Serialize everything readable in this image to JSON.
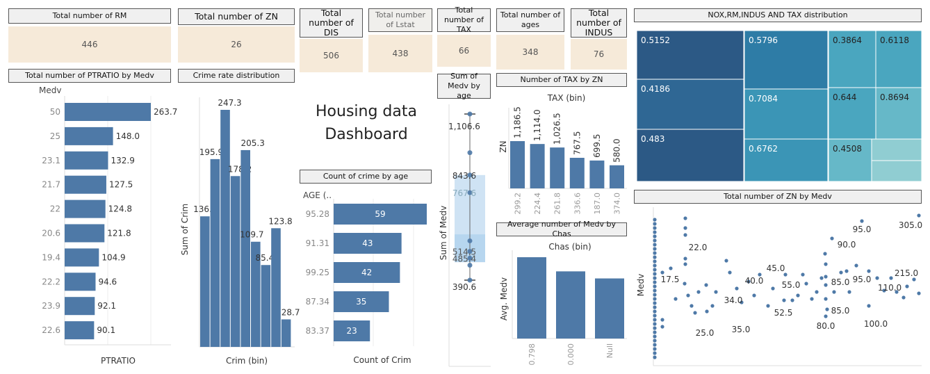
{
  "kpis": {
    "rm": {
      "label": "Total number of RM",
      "value": "446"
    },
    "zn": {
      "label": "Total number of ZN",
      "value": "26"
    },
    "dis": {
      "label": "Total number of DIS",
      "value": "506"
    },
    "lstat": {
      "label": "Total number of Lstat",
      "value": "438"
    },
    "tax": {
      "label": "Total number of TAX",
      "value": "66"
    },
    "ages": {
      "label": "Total number of ages",
      "value": "348"
    },
    "indus": {
      "label": "Total number of INDUS",
      "value": "76"
    }
  },
  "dashboard_title": {
    "line1": "Housing data",
    "line2": "Dashboard"
  },
  "chart_data": [
    {
      "id": "ptratio",
      "type": "bar",
      "title": "Total number of PTRATIO by Medv",
      "ylabel": "Medv",
      "xlabel": "PTRATIO",
      "categories": [
        "50",
        "25",
        "23.1",
        "21.7",
        "22",
        "20.6",
        "19.4",
        "22.2",
        "23.9",
        "22.6"
      ],
      "values": [
        263.7,
        148.0,
        132.9,
        127.5,
        124.8,
        121.8,
        104.9,
        94.6,
        92.1,
        90.1
      ],
      "labels": [
        "263.7",
        "148.0",
        "132.9",
        "127.5",
        "124.8",
        "121.8",
        "104.9",
        "94.6",
        "92.1",
        "90.1"
      ],
      "xlim": [
        0,
        300
      ],
      "color": "#4e79a7"
    },
    {
      "id": "crime",
      "type": "bar",
      "title": "Crime rate distribution",
      "ylabel": "Sum of Crim",
      "xlabel": "Crim (bin)",
      "values": [
        136.2,
        195.9,
        247.3,
        178.2,
        205.3,
        109.7,
        85.4,
        123.8,
        28.7
      ],
      "labels": [
        "136.2",
        "195.9",
        "247.3",
        "178.2",
        "205.3",
        "109.7",
        "85.4",
        "123.8",
        "28.7"
      ],
      "ylim": [
        0,
        260
      ],
      "color": "#4e79a7"
    },
    {
      "id": "crime_age",
      "type": "bar",
      "title": "Count of crime by age",
      "ylabel": "AGE (..",
      "xlabel": "Count of Crim",
      "categories": [
        "95.28",
        "91.31",
        "99.25",
        "87.34",
        "83.37"
      ],
      "values": [
        59,
        43,
        42,
        35,
        23
      ],
      "labels": [
        "59",
        "43",
        "42",
        "35",
        "23"
      ],
      "xlim": [
        0,
        70
      ],
      "color": "#4e79a7"
    },
    {
      "id": "medv_age",
      "type": "scatter",
      "title": "Sum of Medv by age",
      "ylabel": "Sum of Medv",
      "labels": [
        "1,106.6",
        "843.6",
        "767.6",
        "514.5",
        "485.4",
        "390.6"
      ],
      "values": [
        1106.6,
        843.6,
        767.6,
        514.5,
        485.4,
        390.6
      ],
      "ylim": [
        340,
        1200
      ],
      "color": "#4e79a7"
    },
    {
      "id": "tax_zn",
      "type": "bar",
      "title": "Number of TAX by ZN",
      "xlabel": "TAX (bin)",
      "ylabel": "ZN",
      "categories": [
        "299.2",
        "224.4",
        "261.8",
        "336.6",
        "187.0",
        "374.0"
      ],
      "values": [
        1186.5,
        1114.0,
        1026.5,
        767.5,
        699.5,
        580.0
      ],
      "labels": [
        "1,186.5",
        "1,114.0",
        "1,026.5",
        "767.5",
        "699.5",
        "580.0"
      ],
      "ylim": [
        0,
        1300
      ],
      "color": "#4e79a7"
    },
    {
      "id": "medv_chas",
      "type": "bar",
      "title": "Average number of Medv by Chas",
      "xlabel": "Chas (bin)",
      "ylabel": "Avg. Medv",
      "categories": [
        "0.798",
        "0.000",
        "Null"
      ],
      "values": [
        34.5,
        28.5,
        25.5
      ],
      "ylim": [
        0,
        36
      ],
      "color": "#4e79a7"
    },
    {
      "id": "treemap",
      "type": "treemap",
      "title": "NOX,RM,INDUS AND TAX distribution",
      "labels": [
        "0.5152",
        "0.4186",
        "0.483",
        "0.5796",
        "0.7084",
        "0.6762",
        "0.3864",
        "0.6118",
        "0.644",
        "0.8694",
        "0.4508"
      ],
      "palette": [
        "#2c5985",
        "#2f6794",
        "#2e7ca6",
        "#3b95b6",
        "#4aa6bf",
        "#66b8c8",
        "#90cdd2"
      ]
    },
    {
      "id": "zn_medv",
      "type": "scatter",
      "title": "Total number of ZN by Medv",
      "ylabel": "Medv",
      "labels": [
        "305.0",
        "95.0",
        "90.0",
        "22.0",
        "17.5",
        "45.0",
        "40.0",
        "55.0",
        "34.0",
        "85.0",
        "95.0",
        "215.0",
        "110.0",
        "52.5",
        "85.0",
        "25.0",
        "35.0",
        "80.0",
        "100.0"
      ],
      "color": "#4e79a7"
    }
  ]
}
